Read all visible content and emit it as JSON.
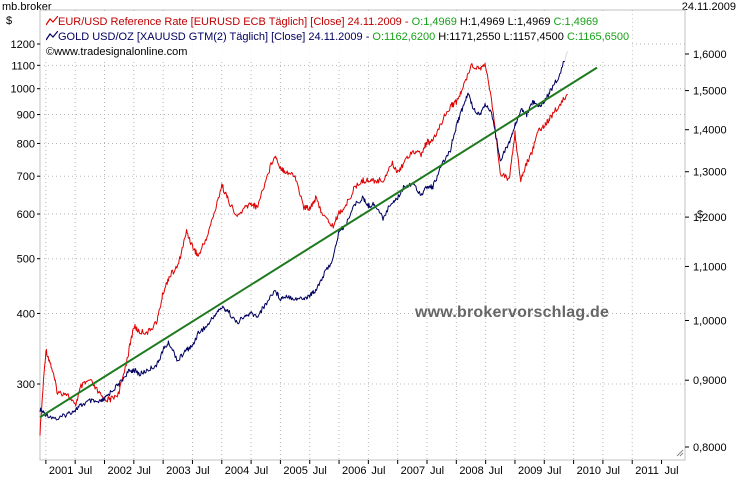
{
  "header": {
    "left_label": "mb.broker",
    "right_label": "24.11.2009"
  },
  "left_axis_unit": "$",
  "right_axis_unit": "$",
  "legend": {
    "eur": {
      "name": "EUR/USD Reference Rate [EURUSD ECB  Täglich] [Close] 24.11.2009 -",
      "o": "O:1,4969",
      "h": "H:1,4969",
      "l": "L:1,4969",
      "c": "C:1,4969",
      "color": "#e00000"
    },
    "gold": {
      "name": "GOLD USD/OZ [XAUUSD GTM(2)  Täglich] [Close] 24.11.2009 -",
      "o": "O:1162,6200",
      "h": "H:1171,2550",
      "l": "L:1157,4500",
      "c": "C:1165,6500",
      "color": "#000060"
    },
    "source": "©www.tradesignalonline.com"
  },
  "watermark": "www.brokervorschlag.de",
  "colors": {
    "grid": "#b8b8b8",
    "trend": "#1f7a1f",
    "frame": "#c0c0c0"
  },
  "chart_data": {
    "type": "line",
    "left_axis": {
      "scale": "log",
      "ticks": [
        300,
        400,
        500,
        600,
        700,
        800,
        900,
        1000,
        1100,
        1200
      ],
      "tick_labels": [
        "300",
        "400",
        "500",
        "600",
        "700",
        "800",
        "900",
        "1000",
        "1100",
        "1200"
      ]
    },
    "right_axis": {
      "scale": "log",
      "ticks": [
        0.8,
        0.9,
        1.0,
        1.1,
        1.2,
        1.3,
        1.4,
        1.5,
        1.6
      ],
      "tick_labels": [
        "0,8000",
        "0,9000",
        "1,0000",
        "1,1000",
        "1,2000",
        "1,3000",
        "1,4000",
        "1,5000",
        "1,6000"
      ]
    },
    "x_axis": {
      "labels": [
        "2001",
        "Jul",
        "2002",
        "Jul",
        "2003",
        "Jul",
        "2004",
        "Jul",
        "2005",
        "Jul",
        "2006",
        "Jul",
        "2007",
        "Jul",
        "2008",
        "Jul",
        "2009",
        "Jul",
        "2010",
        "Jul",
        "2011",
        "Jul"
      ]
    },
    "series": [
      {
        "name": "EUR/USD Reference Rate",
        "axis": "right",
        "x": [
          2000.9,
          2001.0,
          2001.1,
          2001.2,
          2001.35,
          2001.5,
          2001.6,
          2001.75,
          2001.9,
          2002.0,
          2002.1,
          2002.25,
          2002.4,
          2002.5,
          2002.6,
          2002.75,
          2002.9,
          2003.0,
          2003.1,
          2003.25,
          2003.4,
          2003.5,
          2003.6,
          2003.75,
          2003.9,
          2004.0,
          2004.1,
          2004.25,
          2004.4,
          2004.5,
          2004.6,
          2004.75,
          2004.9,
          2005.0,
          2005.1,
          2005.25,
          2005.4,
          2005.5,
          2005.6,
          2005.75,
          2005.9,
          2006.0,
          2006.1,
          2006.25,
          2006.4,
          2006.5,
          2006.6,
          2006.75,
          2006.9,
          2007.0,
          2007.1,
          2007.25,
          2007.4,
          2007.5,
          2007.6,
          2007.75,
          2007.9,
          2008.0,
          2008.1,
          2008.25,
          2008.4,
          2008.5,
          2008.6,
          2008.75,
          2008.9,
          2009.0,
          2009.1,
          2009.2,
          2009.3,
          2009.4,
          2009.5,
          2009.6,
          2009.75,
          2009.9
        ],
        "values": [
          0.82,
          0.95,
          0.92,
          0.88,
          0.88,
          0.86,
          0.89,
          0.9,
          0.88,
          0.87,
          0.87,
          0.88,
          0.94,
          0.99,
          0.98,
          0.98,
          1.0,
          1.05,
          1.08,
          1.1,
          1.17,
          1.14,
          1.12,
          1.16,
          1.22,
          1.27,
          1.24,
          1.2,
          1.22,
          1.23,
          1.22,
          1.28,
          1.34,
          1.31,
          1.3,
          1.29,
          1.22,
          1.22,
          1.24,
          1.2,
          1.18,
          1.21,
          1.22,
          1.26,
          1.28,
          1.28,
          1.28,
          1.28,
          1.32,
          1.3,
          1.32,
          1.35,
          1.34,
          1.37,
          1.37,
          1.42,
          1.46,
          1.47,
          1.5,
          1.57,
          1.56,
          1.57,
          1.47,
          1.3,
          1.28,
          1.39,
          1.28,
          1.32,
          1.35,
          1.4,
          1.41,
          1.43,
          1.46,
          1.49
        ]
      },
      {
        "name": "GOLD USD/OZ",
        "axis": "left",
        "x": [
          2000.9,
          2001.0,
          2001.2,
          2001.35,
          2001.5,
          2001.6,
          2001.75,
          2001.9,
          2002.0,
          2002.1,
          2002.25,
          2002.4,
          2002.5,
          2002.6,
          2002.75,
          2002.9,
          2003.0,
          2003.1,
          2003.25,
          2003.4,
          2003.5,
          2003.6,
          2003.75,
          2003.9,
          2004.0,
          2004.1,
          2004.25,
          2004.4,
          2004.5,
          2004.6,
          2004.75,
          2004.9,
          2005.0,
          2005.1,
          2005.25,
          2005.4,
          2005.5,
          2005.6,
          2005.75,
          2005.9,
          2006.0,
          2006.1,
          2006.25,
          2006.4,
          2006.5,
          2006.6,
          2006.75,
          2006.9,
          2007.0,
          2007.1,
          2007.25,
          2007.4,
          2007.5,
          2007.6,
          2007.75,
          2007.9,
          2008.0,
          2008.1,
          2008.2,
          2008.3,
          2008.4,
          2008.5,
          2008.6,
          2008.75,
          2008.9,
          2009.0,
          2009.1,
          2009.2,
          2009.3,
          2009.4,
          2009.5,
          2009.6,
          2009.75,
          2009.9
        ],
        "values": [
          270,
          265,
          260,
          265,
          270,
          275,
          280,
          278,
          282,
          290,
          300,
          315,
          318,
          312,
          318,
          325,
          345,
          355,
          330,
          345,
          350,
          370,
          380,
          400,
          410,
          405,
          385,
          395,
          400,
          395,
          415,
          440,
          425,
          430,
          425,
          425,
          430,
          440,
          470,
          500,
          560,
          570,
          620,
          640,
          620,
          625,
          590,
          630,
          640,
          670,
          680,
          650,
          670,
          670,
          730,
          780,
          860,
          920,
          980,
          920,
          900,
          940,
          900,
          750,
          800,
          860,
          920,
          900,
          950,
          930,
          950,
          990,
          1050,
          1165
        ]
      },
      {
        "name": "",
        "axis": "left",
        "x": [
          2000.9,
          2010.4
        ],
        "values": [
          262,
          1090
        ]
      }
    ]
  }
}
